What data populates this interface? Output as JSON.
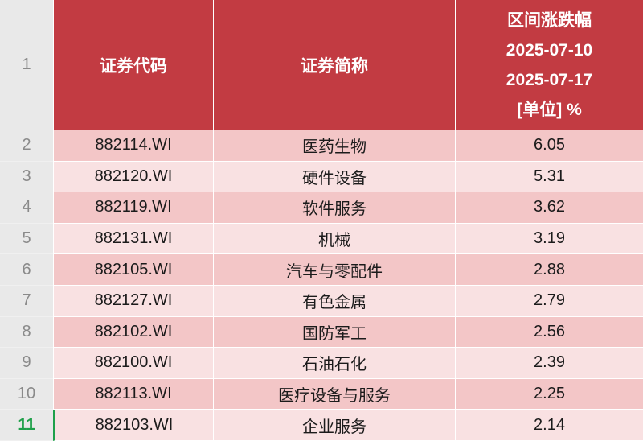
{
  "colors": {
    "header_bg": "#c23b42",
    "row_dark": "#f3c6c7",
    "row_light": "#f9e1e2",
    "gutter_bg": "#e9e9e9",
    "gutter_text": "#8a8a8a",
    "selected_green": "#1fa04a",
    "header_text": "#ffffff",
    "cell_text": "#1b1b1b"
  },
  "gutter": {
    "row1": "1"
  },
  "header": {
    "code": "证券代码",
    "name": "证券简称",
    "change_lines": [
      "区间涨跌幅",
      "2025-07-10",
      "2025-07-17",
      "[单位] %"
    ]
  },
  "rows": [
    {
      "num": "2",
      "code": "882114.WI",
      "name": "医药生物",
      "value": "6.05"
    },
    {
      "num": "3",
      "code": "882120.WI",
      "name": "硬件设备",
      "value": "5.31"
    },
    {
      "num": "4",
      "code": "882119.WI",
      "name": "软件服务",
      "value": "3.62"
    },
    {
      "num": "5",
      "code": "882131.WI",
      "name": "机械",
      "value": "3.19"
    },
    {
      "num": "6",
      "code": "882105.WI",
      "name": "汽车与零配件",
      "value": "2.88"
    },
    {
      "num": "7",
      "code": "882127.WI",
      "name": "有色金属",
      "value": "2.79"
    },
    {
      "num": "8",
      "code": "882102.WI",
      "name": "国防军工",
      "value": "2.56"
    },
    {
      "num": "9",
      "code": "882100.WI",
      "name": "石油石化",
      "value": "2.39"
    },
    {
      "num": "10",
      "code": "882113.WI",
      "name": "医疗设备与服务",
      "value": "2.25"
    },
    {
      "num": "11",
      "code": "882103.WI",
      "name": "企业服务",
      "value": "2.14",
      "selected": true
    }
  ]
}
